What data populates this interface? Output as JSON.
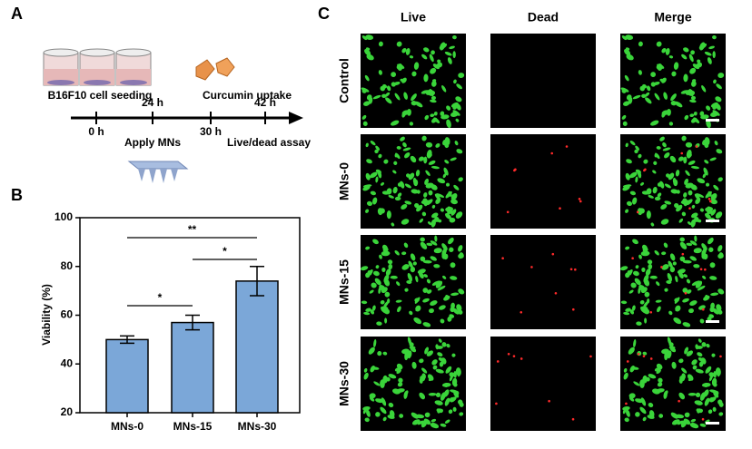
{
  "panel_a": {
    "label": "A",
    "step_labels": [
      "B16F10 cell seeding",
      "Curcumin uptake"
    ],
    "times": [
      "0 h",
      "24 h",
      "30 h",
      "42 h"
    ],
    "actions": [
      "Apply MNs",
      "Live/dead assay"
    ]
  },
  "chart_data": {
    "type": "bar",
    "panel_label": "B",
    "y_label": "Viability (%)",
    "categories": [
      "MNs-0",
      "MNs-15",
      "MNs-30"
    ],
    "values": [
      50,
      57,
      74
    ],
    "errors": [
      1.5,
      3,
      6
    ],
    "color": "#7ba7d8",
    "ylim": [
      20,
      100
    ],
    "yticks": [
      20,
      40,
      60,
      80,
      100
    ],
    "annotations": [
      "*",
      "*",
      "**"
    ]
  },
  "panel_c": {
    "label": "C",
    "columns": [
      "Live",
      "Dead",
      "Merge"
    ],
    "rows": [
      "Control",
      "MNs-0",
      "MNs-15",
      "MNs-30"
    ]
  }
}
